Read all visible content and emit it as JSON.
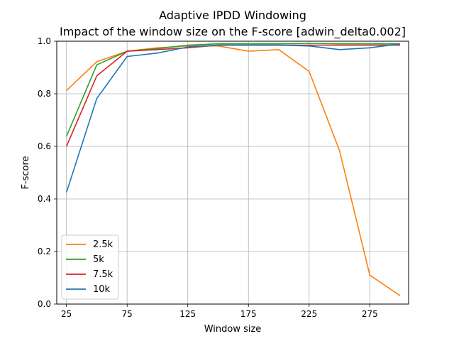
{
  "chart_data": {
    "type": "line",
    "title": "Adaptive IPDD Windowing",
    "subtitle": "Impact of the window size on the F-score [adwin_delta0.002]",
    "xlabel": "Window size",
    "ylabel": "F-score",
    "xlim": [
      17,
      307
    ],
    "ylim": [
      0,
      1.0
    ],
    "xticks": [
      25,
      75,
      125,
      175,
      225,
      275
    ],
    "yticks": [
      0.0,
      0.2,
      0.4,
      0.6,
      0.8,
      1.0
    ],
    "ytick_labels": [
      "0.0",
      "0.2",
      "0.4",
      "0.6",
      "0.8",
      "1.0"
    ],
    "grid": true,
    "legend_position": "lower-left",
    "x": [
      25,
      50,
      75,
      100,
      125,
      150,
      175,
      200,
      225,
      250,
      275,
      300
    ],
    "series": [
      {
        "name": "2.5k",
        "color": "#ff7f0e",
        "values": [
          0.812,
          0.922,
          0.962,
          0.975,
          0.982,
          0.982,
          0.962,
          0.968,
          0.885,
          0.585,
          0.11,
          0.032
        ]
      },
      {
        "name": "5k",
        "color": "#2ca02c",
        "values": [
          0.638,
          0.91,
          0.962,
          0.972,
          0.985,
          0.99,
          0.99,
          0.99,
          0.992,
          0.99,
          0.99,
          0.99
        ]
      },
      {
        "name": "7.5k",
        "color": "#d62728",
        "values": [
          0.6,
          0.868,
          0.962,
          0.968,
          0.975,
          0.985,
          0.985,
          0.985,
          0.985,
          0.985,
          0.985,
          0.985
        ]
      },
      {
        "name": "10k",
        "color": "#1f77b4",
        "values": [
          0.425,
          0.782,
          0.942,
          0.955,
          0.978,
          0.985,
          0.985,
          0.985,
          0.982,
          0.968,
          0.975,
          0.99
        ]
      }
    ]
  }
}
